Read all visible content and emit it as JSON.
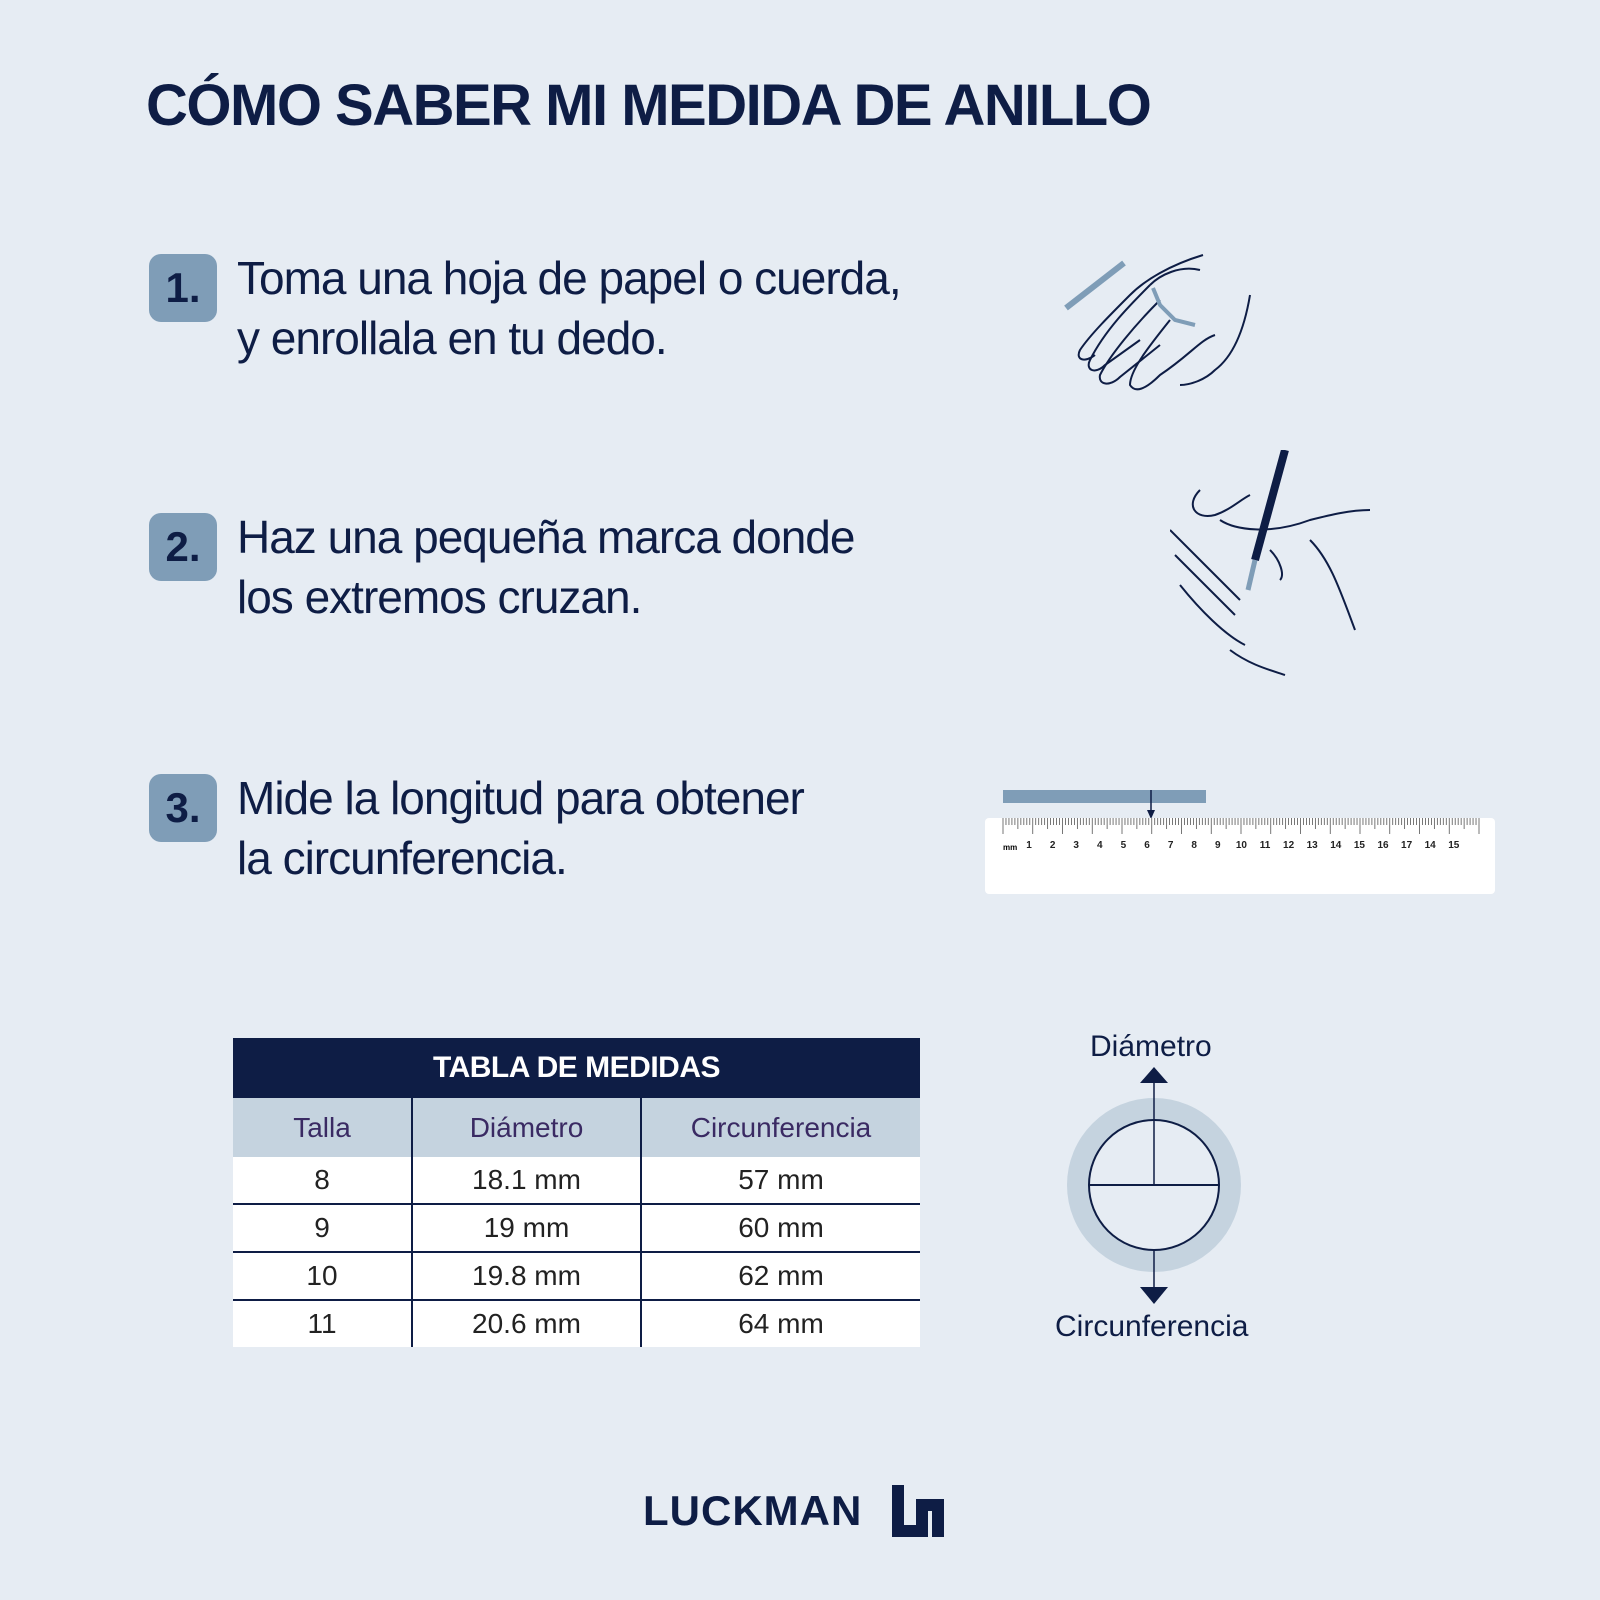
{
  "title": "CÓMO SABER MI MEDIDA DE ANILLO",
  "steps": [
    {
      "number": "1.",
      "line1": "Toma una hoja de papel o cuerda,",
      "line2": "y enrollala en tu dedo."
    },
    {
      "number": "2.",
      "line1": "Haz una pequeña marca donde",
      "line2": "los extremos cruzan."
    },
    {
      "number": "3.",
      "line1": "Mide la longitud para obtener",
      "line2": "la circunferencia."
    }
  ],
  "ruler": {
    "unit": "mm",
    "labels": [
      "1",
      "2",
      "3",
      "4",
      "5",
      "6",
      "7",
      "8",
      "9",
      "10",
      "11",
      "12",
      "13",
      "14",
      "15",
      "16",
      "17",
      "14",
      "15"
    ]
  },
  "table": {
    "title": "TABLA DE MEDIDAS",
    "headers": [
      "Talla",
      "Diámetro",
      "Circunferencia"
    ],
    "rows": [
      [
        "8",
        "18.1 mm",
        "57 mm"
      ],
      [
        "9",
        "19 mm",
        "60 mm"
      ],
      [
        "10",
        "19.8 mm",
        "62 mm"
      ],
      [
        "11",
        "20.6 mm",
        "64 mm"
      ]
    ]
  },
  "diagram": {
    "top_label": "Diámetro",
    "bottom_label": "Circunferencia"
  },
  "brand": {
    "name": "LUCKMAN"
  },
  "colors": {
    "navy": "#0e1d45",
    "accent": "#7f9db7",
    "background": "#e6ecf3",
    "table_header": "#c5d3df"
  }
}
